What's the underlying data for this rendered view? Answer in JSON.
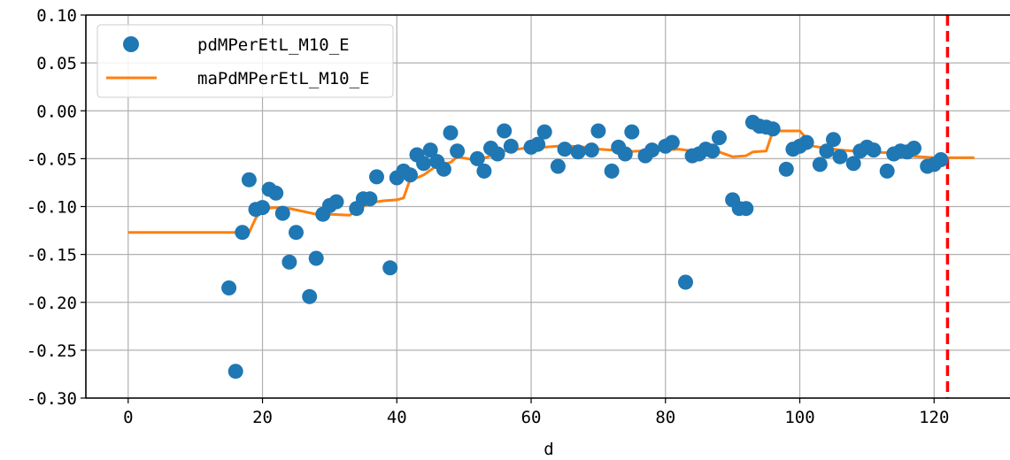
{
  "chart_data": {
    "type": "scatter",
    "title": "",
    "xlabel": "d",
    "ylabel": "",
    "xlim": [
      -6.3,
      131.3
    ],
    "ylim": [
      -0.3,
      0.1
    ],
    "xticks": [
      0,
      20,
      40,
      60,
      80,
      100,
      120
    ],
    "xtick_labels": [
      "0",
      "20",
      "40",
      "60",
      "80",
      "100",
      "120"
    ],
    "yticks": [
      0.1,
      0.05,
      0.0,
      -0.05,
      -0.1,
      -0.15,
      -0.2,
      -0.25,
      -0.3
    ],
    "ytick_labels": [
      "0.10",
      "0.05",
      "0.00",
      "-0.05",
      "-0.10",
      "-0.15",
      "-0.20",
      "-0.25",
      "-0.30"
    ],
    "grid": true,
    "legend_position": "top-left",
    "series": [
      {
        "name": "pdMPerEtL_M10_E",
        "kind": "scatter",
        "color": "#1f77b4",
        "x": [
          15,
          16,
          17,
          18,
          19,
          20,
          21,
          22,
          23,
          24,
          25,
          27,
          28,
          29,
          30,
          31,
          34,
          35,
          36,
          37,
          39,
          40,
          41,
          42,
          43,
          44,
          45,
          46,
          47,
          48,
          49,
          52,
          53,
          54,
          55,
          56,
          57,
          60,
          61,
          62,
          64,
          65,
          67,
          69,
          70,
          72,
          73,
          74,
          75,
          77,
          78,
          80,
          81,
          83,
          84,
          85,
          86,
          87,
          88,
          90,
          91,
          92,
          93,
          94,
          95,
          96,
          98,
          99,
          100,
          101,
          103,
          104,
          105,
          106,
          108,
          109,
          110,
          111,
          113,
          114,
          115,
          116,
          117,
          119,
          120,
          121
        ],
        "y": [
          -0.185,
          -0.272,
          -0.127,
          -0.072,
          -0.103,
          -0.101,
          -0.082,
          -0.086,
          -0.107,
          -0.158,
          -0.127,
          -0.194,
          -0.154,
          -0.108,
          -0.099,
          -0.095,
          -0.102,
          -0.092,
          -0.092,
          -0.069,
          -0.164,
          -0.07,
          -0.063,
          -0.067,
          -0.046,
          -0.055,
          -0.041,
          -0.053,
          -0.061,
          -0.023,
          -0.042,
          -0.05,
          -0.063,
          -0.039,
          -0.045,
          -0.021,
          -0.037,
          -0.038,
          -0.035,
          -0.022,
          -0.058,
          -0.04,
          -0.043,
          -0.041,
          -0.021,
          -0.063,
          -0.038,
          -0.045,
          -0.022,
          -0.047,
          -0.041,
          -0.037,
          -0.033,
          -0.179,
          -0.047,
          -0.045,
          -0.04,
          -0.042,
          -0.028,
          -0.093,
          -0.102,
          -0.102,
          -0.012,
          -0.016,
          -0.017,
          -0.019,
          -0.061,
          -0.04,
          -0.037,
          -0.033,
          -0.056,
          -0.042,
          -0.03,
          -0.048,
          -0.055,
          -0.042,
          -0.038,
          -0.041,
          -0.063,
          -0.045,
          -0.042,
          -0.043,
          -0.039,
          -0.058,
          -0.056,
          -0.051
        ]
      },
      {
        "name": "maPdMPerEtL_M10_E",
        "kind": "line",
        "color": "#ff7f0e",
        "x": [
          0,
          18,
          19,
          20,
          22,
          24,
          26,
          28,
          30,
          33,
          34,
          36,
          38,
          40,
          41,
          42,
          43,
          44,
          46,
          48,
          49,
          52,
          54,
          56,
          58,
          60,
          62,
          64,
          66,
          68,
          70,
          72,
          74,
          76,
          78,
          80,
          82,
          84,
          86,
          88,
          90,
          92,
          93,
          95,
          96,
          98,
          100,
          102,
          104,
          106,
          110,
          114,
          115,
          116,
          118,
          120,
          122,
          126
        ],
        "y": [
          -0.127,
          -0.127,
          -0.112,
          -0.102,
          -0.101,
          -0.102,
          -0.105,
          -0.108,
          -0.108,
          -0.109,
          -0.104,
          -0.096,
          -0.094,
          -0.093,
          -0.091,
          -0.071,
          -0.07,
          -0.067,
          -0.057,
          -0.054,
          -0.048,
          -0.052,
          -0.047,
          -0.042,
          -0.04,
          -0.038,
          -0.038,
          -0.037,
          -0.037,
          -0.038,
          -0.04,
          -0.041,
          -0.043,
          -0.042,
          -0.042,
          -0.041,
          -0.04,
          -0.042,
          -0.042,
          -0.043,
          -0.048,
          -0.047,
          -0.043,
          -0.042,
          -0.021,
          -0.021,
          -0.021,
          -0.037,
          -0.039,
          -0.041,
          -0.043,
          -0.044,
          -0.045,
          -0.047,
          -0.048,
          -0.049,
          -0.049,
          -0.049
        ]
      }
    ],
    "vline": {
      "x": 122,
      "color": "#ff0000",
      "style": "dashed"
    }
  }
}
